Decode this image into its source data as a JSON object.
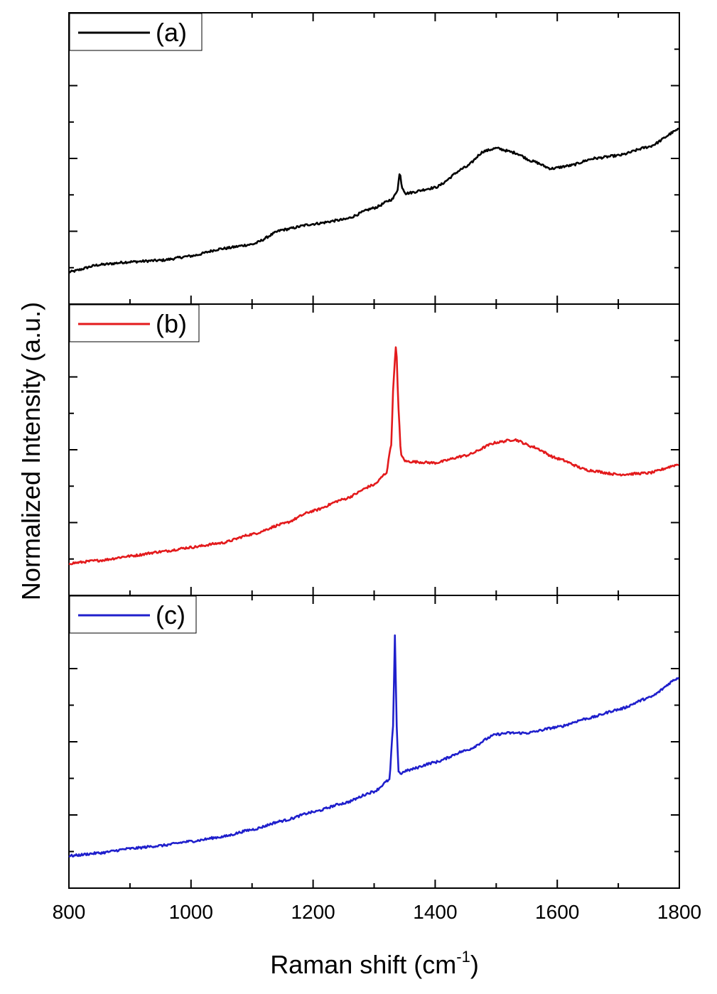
{
  "chart_data": {
    "type": "line",
    "layout": "three vertically stacked panels sharing the x axis",
    "xlabel_text": "Raman shift (cm",
    "xlabel_sup": "-1",
    "xlabel_close": ")",
    "ylabel": "Normalized Intensity (a.u.)",
    "xlim": [
      800,
      1800
    ],
    "x_ticks": [
      800,
      1000,
      1200,
      1400,
      1600,
      1800
    ],
    "x_tick_labels": [
      "800",
      "1000",
      "1200",
      "1400",
      "1600",
      "1800"
    ],
    "ylim": [
      0,
      1
    ],
    "grid": false,
    "legend_position": "top-left",
    "panels": [
      {
        "id": "a",
        "legend": "(a)",
        "color": "#000000",
        "x": [
          800,
          850,
          900,
          950,
          1000,
          1050,
          1100,
          1150,
          1200,
          1250,
          1300,
          1330,
          1338,
          1342,
          1346,
          1352,
          1400,
          1450,
          1480,
          1500,
          1530,
          1560,
          1590,
          1620,
          1660,
          1700,
          1750,
          1800
        ],
        "y": [
          0.11,
          0.135,
          0.145,
          0.15,
          0.165,
          0.19,
          0.205,
          0.255,
          0.275,
          0.29,
          0.33,
          0.36,
          0.39,
          0.45,
          0.4,
          0.38,
          0.4,
          0.47,
          0.525,
          0.535,
          0.52,
          0.49,
          0.465,
          0.475,
          0.5,
          0.51,
          0.54,
          0.6
        ]
      },
      {
        "id": "b",
        "legend": "(b)",
        "color": "#e31a1c",
        "x": [
          800,
          850,
          900,
          950,
          1000,
          1050,
          1100,
          1150,
          1200,
          1250,
          1300,
          1320,
          1328,
          1332,
          1336,
          1340,
          1344,
          1352,
          1400,
          1450,
          1500,
          1530,
          1560,
          1600,
          1650,
          1700,
          1750,
          1800
        ],
        "y": [
          0.11,
          0.12,
          0.135,
          0.15,
          0.165,
          0.18,
          0.21,
          0.245,
          0.29,
          0.33,
          0.38,
          0.42,
          0.52,
          0.75,
          0.86,
          0.64,
          0.48,
          0.46,
          0.455,
          0.48,
          0.525,
          0.535,
          0.51,
          0.47,
          0.43,
          0.415,
          0.42,
          0.45
        ]
      },
      {
        "id": "c",
        "legend": "(c)",
        "color": "#1f1fcc",
        "x": [
          800,
          850,
          900,
          950,
          1000,
          1050,
          1100,
          1150,
          1200,
          1250,
          1300,
          1325,
          1331,
          1334,
          1337,
          1340,
          1344,
          1350,
          1400,
          1450,
          1500,
          1520,
          1550,
          1600,
          1650,
          1700,
          1750,
          1800
        ],
        "y": [
          0.11,
          0.12,
          0.135,
          0.145,
          0.16,
          0.175,
          0.2,
          0.23,
          0.26,
          0.29,
          0.33,
          0.37,
          0.55,
          0.86,
          0.55,
          0.4,
          0.39,
          0.4,
          0.43,
          0.47,
          0.525,
          0.53,
          0.53,
          0.55,
          0.58,
          0.61,
          0.65,
          0.72
        ]
      }
    ]
  }
}
